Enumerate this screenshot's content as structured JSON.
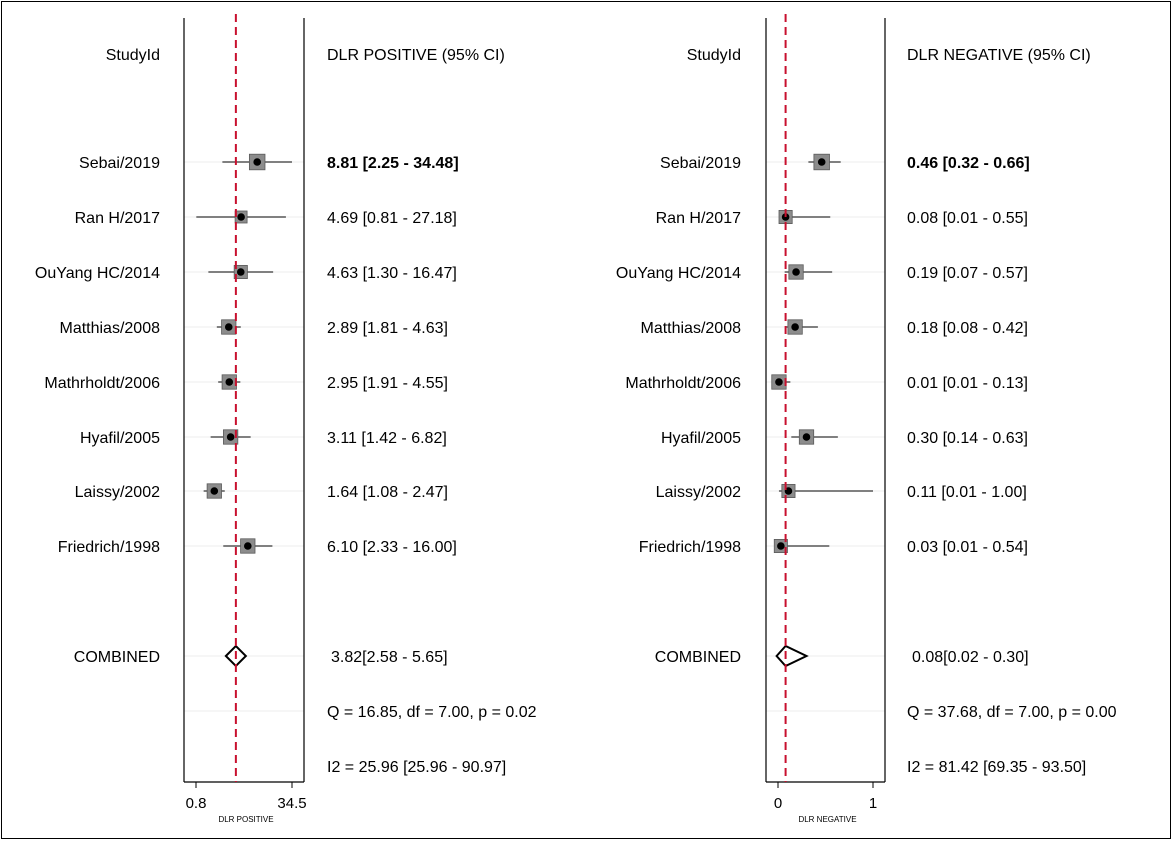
{
  "chart_data": [
    {
      "type": "forest",
      "header_left": "StudyId",
      "header_right": "DLR POSITIVE (95% CI)",
      "axis_title": "DLR POSITIVE",
      "scale": "log",
      "xlim": [
        0.8,
        34.5
      ],
      "ticks": [
        0.8,
        34.5
      ],
      "tick_labels": [
        "0.8",
        "34.5"
      ],
      "reference_line": 3.82,
      "reference_color": "#c8102e",
      "studies": [
        {
          "name": "Sebai/2019",
          "value": 8.81,
          "lo": 2.25,
          "hi": 34.48,
          "label": "8.81 [2.25 - 34.48]",
          "bold": true,
          "weight": 1.3
        },
        {
          "name": "Ran H/2017",
          "value": 4.69,
          "lo": 0.81,
          "hi": 27.18,
          "label": "4.69 [0.81 - 27.18]",
          "bold": false,
          "weight": 1.0
        },
        {
          "name": "OuYang HC/2014",
          "value": 4.63,
          "lo": 1.3,
          "hi": 16.47,
          "label": "4.63 [1.30 - 16.47]",
          "bold": false,
          "weight": 1.1
        },
        {
          "name": "Matthias/2008",
          "value": 2.89,
          "lo": 1.81,
          "hi": 4.63,
          "label": "2.89 [1.81 - 4.63]",
          "bold": false,
          "weight": 1.2
        },
        {
          "name": "Mathrholdt/2006",
          "value": 2.95,
          "lo": 1.91,
          "hi": 4.55,
          "label": "2.95 [1.91 - 4.55]",
          "bold": false,
          "weight": 1.2
        },
        {
          "name": "Hyafil/2005",
          "value": 3.11,
          "lo": 1.42,
          "hi": 6.82,
          "label": "3.11 [1.42 - 6.82]",
          "bold": false,
          "weight": 1.2
        },
        {
          "name": "Laissy/2002",
          "value": 1.64,
          "lo": 1.08,
          "hi": 2.47,
          "label": "1.64 [1.08 - 2.47]",
          "bold": false,
          "weight": 1.2
        },
        {
          "name": "Friedrich/1998",
          "value": 6.1,
          "lo": 2.33,
          "hi": 16.0,
          "label": "6.10 [2.33 - 16.00]",
          "bold": false,
          "weight": 1.2
        }
      ],
      "combined": {
        "name": "COMBINED",
        "value": 3.82,
        "lo": 2.58,
        "hi": 5.65,
        "label": "3.82[2.58 - 5.65]"
      },
      "heterogeneity": "Q = 16.85, df = 7.00, p =  0.02",
      "i2": "I2 = 25.96 [25.96 - 90.97]"
    },
    {
      "type": "forest",
      "header_left": "StudyId",
      "header_right": "DLR NEGATIVE (95% CI)",
      "axis_title": "DLR NEGATIVE",
      "scale": "linear",
      "xlim": [
        0,
        1
      ],
      "ticks": [
        0,
        1
      ],
      "tick_labels": [
        "0",
        "1"
      ],
      "reference_line": 0.08,
      "reference_color": "#c8102e",
      "studies": [
        {
          "name": "Sebai/2019",
          "value": 0.46,
          "lo": 0.32,
          "hi": 0.66,
          "label": "0.46 [0.32 - 0.66]",
          "bold": true,
          "weight": 1.3
        },
        {
          "name": "Ran H/2017",
          "value": 0.08,
          "lo": 0.01,
          "hi": 0.55,
          "label": "0.08 [0.01 - 0.55]",
          "bold": false,
          "weight": 1.1
        },
        {
          "name": "OuYang HC/2014",
          "value": 0.19,
          "lo": 0.07,
          "hi": 0.57,
          "label": "0.19 [0.07 - 0.57]",
          "bold": false,
          "weight": 1.2
        },
        {
          "name": "Matthias/2008",
          "value": 0.18,
          "lo": 0.08,
          "hi": 0.42,
          "label": "0.18 [0.08 - 0.42]",
          "bold": false,
          "weight": 1.2
        },
        {
          "name": "Mathrholdt/2006",
          "value": 0.01,
          "lo": 0.01,
          "hi": 0.13,
          "label": "0.01 [0.01 - 0.13]",
          "bold": false,
          "weight": 1.2
        },
        {
          "name": "Hyafil/2005",
          "value": 0.3,
          "lo": 0.14,
          "hi": 0.63,
          "label": "0.30 [0.14 - 0.63]",
          "bold": false,
          "weight": 1.2
        },
        {
          "name": "Laissy/2002",
          "value": 0.11,
          "lo": 0.01,
          "hi": 1.0,
          "label": "0.11 [0.01 - 1.00]",
          "bold": false,
          "weight": 1.1
        },
        {
          "name": "Friedrich/1998",
          "value": 0.03,
          "lo": 0.01,
          "hi": 0.54,
          "label": "0.03 [0.01 - 0.54]",
          "bold": false,
          "weight": 1.1
        }
      ],
      "combined": {
        "name": "COMBINED",
        "value": 0.08,
        "lo": 0.02,
        "hi": 0.3,
        "label": "0.08[0.02 - 0.30]"
      },
      "heterogeneity": "Q = 37.68, df = 7.00, p =  0.00",
      "i2": "I2 = 81.42 [69.35 - 93.50]"
    }
  ]
}
